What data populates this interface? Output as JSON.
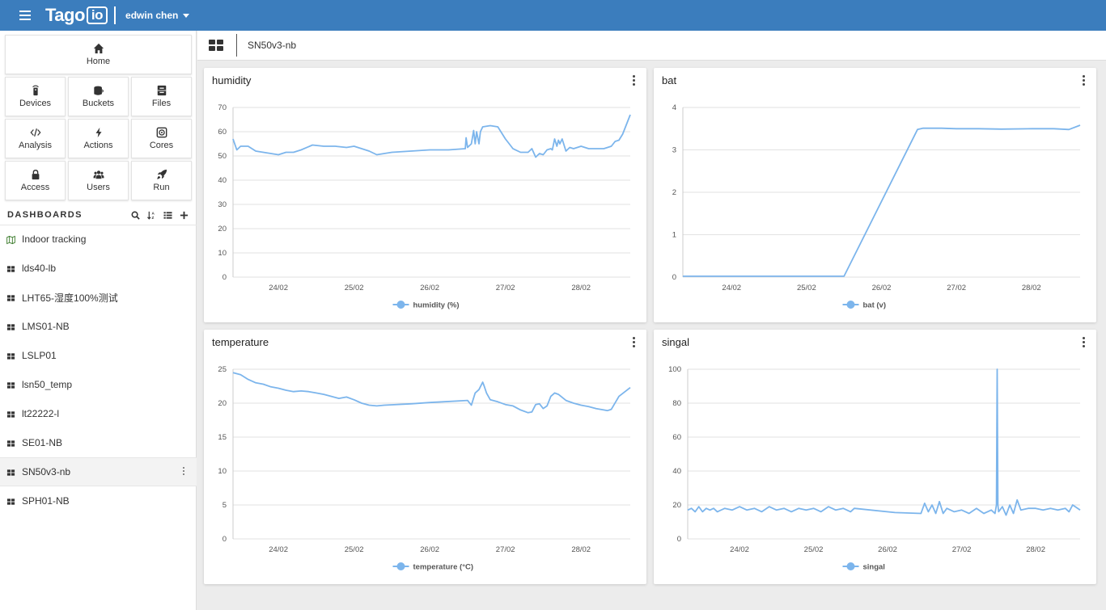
{
  "app": {
    "logo_text": "Tago",
    "logo_badge": "io",
    "user_name": "edwin chen"
  },
  "nav": {
    "home": "Home",
    "devices": "Devices",
    "buckets": "Buckets",
    "files": "Files",
    "analysis": "Analysis",
    "actions": "Actions",
    "cores": "Cores",
    "access": "Access",
    "users": "Users",
    "run": "Run"
  },
  "dashboards": {
    "heading": "DASHBOARDS",
    "items": [
      {
        "label": "Indoor tracking",
        "icon": "map-icon"
      },
      {
        "label": "lds40-lb",
        "icon": "dashboard-icon"
      },
      {
        "label": "LHT65-湿度100%测试",
        "icon": "dashboard-icon"
      },
      {
        "label": "LMS01-NB",
        "icon": "dashboard-icon"
      },
      {
        "label": "LSLP01",
        "icon": "dashboard-icon"
      },
      {
        "label": "lsn50_temp",
        "icon": "dashboard-icon"
      },
      {
        "label": "lt22222-l",
        "icon": "dashboard-icon"
      },
      {
        "label": "SE01-NB",
        "icon": "dashboard-icon"
      },
      {
        "label": "SN50v3-nb",
        "icon": "dashboard-icon",
        "active": true
      },
      {
        "label": "SPH01-NB",
        "icon": "dashboard-icon"
      }
    ]
  },
  "breadcrumb": {
    "title": "SN50v3-nb"
  },
  "widgets": {
    "humidity": {
      "title": "humidity"
    },
    "bat": {
      "title": "bat"
    },
    "temperature": {
      "title": "temperature"
    },
    "singal": {
      "title": "singal"
    }
  },
  "colors": {
    "topbar": "#3b7dbd",
    "series": "#7cb5ec"
  },
  "chart_data": [
    {
      "id": "humidity",
      "type": "line",
      "title": "humidity",
      "x_ticks": [
        "24/02",
        "25/02",
        "26/02",
        "27/02",
        "28/02"
      ],
      "x_range": [
        23.4,
        28.65
      ],
      "ylim": [
        0,
        70
      ],
      "y_ticks": [
        0,
        10,
        20,
        30,
        40,
        50,
        60,
        70
      ],
      "series": [
        {
          "name": "humidity (%)",
          "x": [
            23.4,
            23.45,
            23.5,
            23.6,
            23.7,
            23.8,
            23.9,
            24.0,
            24.1,
            24.2,
            24.3,
            24.45,
            24.6,
            24.75,
            24.9,
            25.0,
            25.1,
            25.2,
            25.3,
            25.4,
            25.5,
            25.75,
            26.0,
            26.25,
            26.47,
            26.48,
            26.5,
            26.55,
            26.58,
            26.6,
            26.62,
            26.65,
            26.67,
            26.7,
            26.8,
            26.9,
            27.0,
            27.05,
            27.1,
            27.2,
            27.3,
            27.35,
            27.4,
            27.45,
            27.5,
            27.55,
            27.6,
            27.62,
            27.65,
            27.68,
            27.7,
            27.72,
            27.75,
            27.8,
            27.85,
            27.9,
            28.0,
            28.1,
            28.2,
            28.3,
            28.4,
            28.45,
            28.5,
            28.55,
            28.65
          ],
          "y": [
            57,
            52.5,
            54,
            54,
            52,
            51.5,
            51,
            50.5,
            51.5,
            51.5,
            52.5,
            54.5,
            54,
            54,
            53.5,
            54,
            53,
            52,
            50.5,
            51,
            51.5,
            52,
            52.5,
            52.5,
            53,
            57.5,
            53.5,
            55,
            60.5,
            55,
            60,
            55,
            60,
            62,
            62.5,
            62,
            57,
            55,
            53,
            51.5,
            51.5,
            53,
            49.5,
            51,
            50.5,
            52.5,
            53,
            52.5,
            57,
            54,
            56.5,
            55,
            57,
            52,
            53.5,
            53,
            54,
            53,
            53,
            53,
            54,
            56,
            56.5,
            59,
            67
          ]
        }
      ]
    },
    {
      "id": "bat",
      "type": "line",
      "title": "bat",
      "x_ticks": [
        "24/02",
        "25/02",
        "26/02",
        "27/02",
        "28/02"
      ],
      "x_range": [
        23.35,
        28.65
      ],
      "ylim": [
        0,
        4
      ],
      "y_ticks": [
        0,
        1,
        2,
        3,
        4
      ],
      "series": [
        {
          "name": "bat (v)",
          "x": [
            23.35,
            24.0,
            24.5,
            25.0,
            25.5,
            26.48,
            26.55,
            26.8,
            27.0,
            27.3,
            27.6,
            28.0,
            28.3,
            28.5,
            28.65
          ],
          "y": [
            0.02,
            0.02,
            0.02,
            0.02,
            0.02,
            3.48,
            3.51,
            3.51,
            3.5,
            3.5,
            3.49,
            3.5,
            3.5,
            3.48,
            3.58
          ]
        }
      ]
    },
    {
      "id": "temperature",
      "type": "line",
      "title": "temperature",
      "x_ticks": [
        "24/02",
        "25/02",
        "26/02",
        "27/02",
        "28/02"
      ],
      "x_range": [
        23.4,
        28.65
      ],
      "ylim": [
        0,
        25
      ],
      "y_ticks": [
        0,
        5,
        10,
        15,
        20,
        25
      ],
      "series": [
        {
          "name": "temperature (°C)",
          "x": [
            23.4,
            23.5,
            23.6,
            23.7,
            23.8,
            23.9,
            24.0,
            24.1,
            24.2,
            24.3,
            24.4,
            24.5,
            24.6,
            24.7,
            24.8,
            24.9,
            25.0,
            25.1,
            25.2,
            25.3,
            25.4,
            25.75,
            26.0,
            26.5,
            26.55,
            26.6,
            26.65,
            26.7,
            26.72,
            26.75,
            26.8,
            26.9,
            27.0,
            27.1,
            27.2,
            27.3,
            27.35,
            27.4,
            27.45,
            27.5,
            27.55,
            27.6,
            27.65,
            27.7,
            27.8,
            27.9,
            28.0,
            28.1,
            28.2,
            28.3,
            28.35,
            28.4,
            28.5,
            28.65
          ],
          "y": [
            24.5,
            24.2,
            23.5,
            23.0,
            22.8,
            22.4,
            22.2,
            21.9,
            21.7,
            21.8,
            21.7,
            21.5,
            21.3,
            21.0,
            20.7,
            20.9,
            20.5,
            20.0,
            19.7,
            19.6,
            19.7,
            19.9,
            20.1,
            20.4,
            19.7,
            21.5,
            22.0,
            23.1,
            22.5,
            21.5,
            20.5,
            20.2,
            19.8,
            19.6,
            19.0,
            18.6,
            18.7,
            19.8,
            19.9,
            19.2,
            19.6,
            21.0,
            21.5,
            21.3,
            20.4,
            20.0,
            19.7,
            19.5,
            19.2,
            19.0,
            18.9,
            19.1,
            21.0,
            22.3
          ]
        }
      ]
    },
    {
      "id": "singal",
      "type": "line",
      "title": "singal",
      "x_ticks": [
        "24/02",
        "25/02",
        "26/02",
        "27/02",
        "28/02"
      ],
      "x_range": [
        23.3,
        28.6
      ],
      "ylim": [
        0,
        100
      ],
      "y_ticks": [
        0,
        20,
        40,
        60,
        80,
        100
      ],
      "series": [
        {
          "name": "singal",
          "x": [
            23.3,
            23.35,
            23.4,
            23.45,
            23.5,
            23.55,
            23.6,
            23.65,
            23.7,
            23.8,
            23.9,
            24.0,
            24.1,
            24.2,
            24.3,
            24.4,
            24.5,
            24.6,
            24.7,
            24.8,
            24.9,
            25.0,
            25.1,
            25.2,
            25.3,
            25.4,
            25.5,
            25.55,
            26.1,
            26.45,
            26.5,
            26.55,
            26.6,
            26.65,
            26.7,
            26.75,
            26.8,
            26.9,
            27.0,
            27.1,
            27.2,
            27.3,
            27.4,
            27.45,
            27.47,
            27.48,
            27.49,
            27.5,
            27.55,
            27.6,
            27.65,
            27.7,
            27.75,
            27.8,
            27.9,
            28.0,
            28.1,
            28.2,
            28.3,
            28.4,
            28.45,
            28.5,
            28.6
          ],
          "y": [
            17,
            18,
            16,
            19,
            16,
            18,
            17,
            18,
            16,
            18,
            17,
            19,
            17,
            18,
            16,
            19,
            17,
            18,
            16,
            18,
            17,
            18,
            16,
            19,
            17,
            18,
            16,
            18,
            15.5,
            15,
            21,
            16,
            20,
            15,
            22,
            15,
            18,
            16,
            17,
            15,
            18,
            15,
            17,
            15,
            20,
            100,
            20,
            16,
            19,
            14,
            20,
            15,
            23,
            17,
            18,
            18,
            17,
            18,
            17,
            18,
            16,
            20,
            17
          ]
        }
      ]
    }
  ]
}
